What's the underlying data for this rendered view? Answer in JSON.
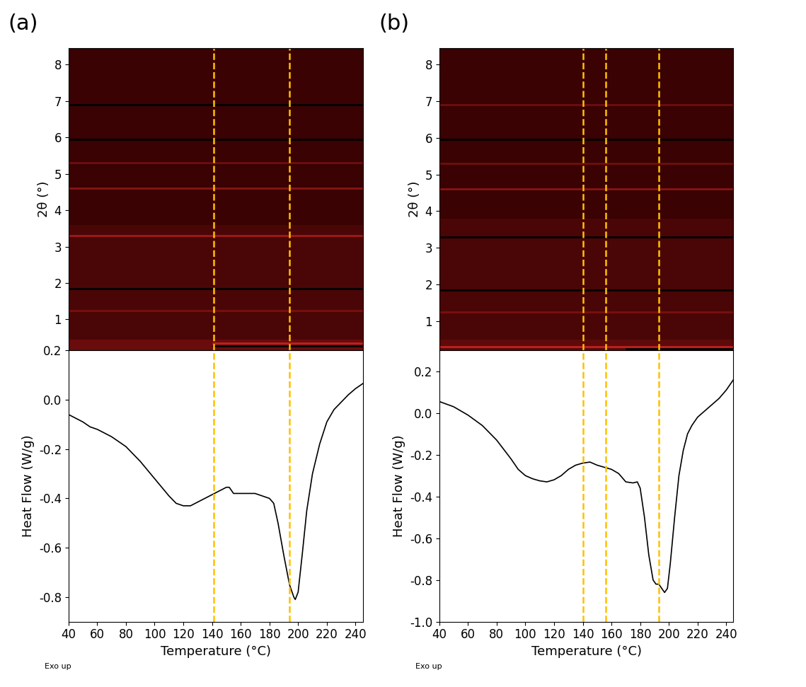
{
  "chart_data": [
    {
      "type": "heatmap",
      "panel_label": "(a)",
      "ylabel": "2θ (°)",
      "xlim": [
        40,
        245
      ],
      "ylim": [
        0.15,
        8.45
      ],
      "yticks": [
        1,
        2,
        3,
        4,
        5,
        6,
        7,
        8
      ],
      "tick_labels": "y",
      "color": "#3a0202",
      "bands": [
        {
          "y": [
            0.15,
            3.6
          ],
          "color": "#4a0606"
        },
        {
          "y": [
            0.15,
            0.45
          ],
          "color": "#6a0c0c"
        }
      ],
      "streaks": [
        {
          "y": 6.9,
          "x": [
            40,
            245
          ],
          "color": "#000000"
        },
        {
          "y": 5.95,
          "x": [
            40,
            245
          ],
          "color": "#000000"
        },
        {
          "y": 5.3,
          "x": [
            40,
            245
          ],
          "color": "#6e0f0f"
        },
        {
          "y": 4.6,
          "x": [
            40,
            245
          ],
          "color": "#8a1414"
        },
        {
          "y": 3.3,
          "x": [
            40,
            245
          ],
          "color": "#a01a1a"
        },
        {
          "y": 1.85,
          "x": [
            40,
            245
          ],
          "color": "#000000"
        },
        {
          "y": 1.25,
          "x": [
            40,
            245
          ],
          "color": "#7a1010"
        },
        {
          "y": 0.35,
          "x": [
            140,
            245
          ],
          "color": "#c02020"
        },
        {
          "y": 0.27,
          "x": [
            140,
            245
          ],
          "color": "#000000"
        }
      ],
      "vlines": {
        "x": [
          141,
          194
        ],
        "color": "#ffc000",
        "line_style": "dashed"
      }
    },
    {
      "type": "line",
      "xlabel": "Temperature (°C)",
      "ylabel": "Heat Flow (W/g)",
      "note": "Exo up",
      "xlim": [
        40,
        245
      ],
      "ylim": [
        -0.9,
        0.2
      ],
      "xticks": [
        40,
        60,
        80,
        100,
        120,
        140,
        160,
        180,
        200,
        220,
        240
      ],
      "yticks": [
        -0.8,
        -0.6,
        -0.4,
        -0.2,
        0.0,
        0.2
      ],
      "color": "#000000",
      "x": [
        40,
        50,
        55,
        60,
        70,
        80,
        90,
        100,
        110,
        115,
        120,
        125,
        130,
        140,
        145,
        150,
        152,
        155,
        160,
        165,
        170,
        175,
        180,
        183,
        186,
        190,
        194,
        197,
        198,
        200,
        203,
        206,
        210,
        215,
        220,
        225,
        230,
        235,
        240,
        245
      ],
      "values": [
        -0.06,
        -0.09,
        -0.11,
        -0.12,
        -0.15,
        -0.19,
        -0.25,
        -0.32,
        -0.39,
        -0.42,
        -0.43,
        -0.43,
        -0.415,
        -0.385,
        -0.37,
        -0.355,
        -0.355,
        -0.38,
        -0.38,
        -0.38,
        -0.38,
        -0.39,
        -0.4,
        -0.42,
        -0.5,
        -0.63,
        -0.75,
        -0.8,
        -0.81,
        -0.78,
        -0.62,
        -0.45,
        -0.3,
        -0.18,
        -0.09,
        -0.04,
        -0.01,
        0.02,
        0.045,
        0.065
      ],
      "vlines": {
        "x": [
          141,
          194
        ],
        "color": "#ffc000",
        "line_style": "dashed"
      }
    },
    {
      "type": "heatmap",
      "panel_label": "(b)",
      "ylabel": "2θ (°)",
      "xlim": [
        40,
        245
      ],
      "ylim": [
        0.2,
        8.45
      ],
      "yticks": [
        1,
        2,
        3,
        4,
        5,
        6,
        7,
        8
      ],
      "tick_labels": "y",
      "color": "#3a0202",
      "bands": [
        {
          "y": [
            0.2,
            3.8
          ],
          "color": "#4a0606"
        },
        {
          "y": [
            0.2,
            0.5
          ],
          "color": "#5e0a0a"
        }
      ],
      "streaks": [
        {
          "y": 6.9,
          "x": [
            40,
            245
          ],
          "color": "#6e0f0f"
        },
        {
          "y": 5.95,
          "x": [
            40,
            245
          ],
          "color": "#000000"
        },
        {
          "y": 5.3,
          "x": [
            40,
            245
          ],
          "color": "#6e0f0f"
        },
        {
          "y": 4.6,
          "x": [
            40,
            245
          ],
          "color": "#8a1414"
        },
        {
          "y": 3.3,
          "x": [
            40,
            245
          ],
          "color": "#000000"
        },
        {
          "y": 1.85,
          "x": [
            40,
            245
          ],
          "color": "#000000"
        },
        {
          "y": 1.25,
          "x": [
            40,
            245
          ],
          "color": "#7a1010"
        },
        {
          "y": 0.3,
          "x": [
            40,
            245
          ],
          "color": "#c02020"
        },
        {
          "y": 0.25,
          "x": [
            170,
            245
          ],
          "color": "#000000"
        }
      ],
      "vlines": {
        "x": [
          140,
          156,
          193
        ],
        "color": "#ffc000",
        "line_style": "dashed"
      }
    },
    {
      "type": "line",
      "xlabel": "Temperature (°C)",
      "ylabel": "Heat Flow (W/g)",
      "note": "Exo up",
      "xlim": [
        40,
        245
      ],
      "ylim": [
        -1.0,
        0.3
      ],
      "xticks": [
        40,
        60,
        80,
        100,
        120,
        140,
        160,
        180,
        200,
        220,
        240
      ],
      "yticks": [
        -1.0,
        -0.8,
        -0.6,
        -0.4,
        -0.2,
        0.0,
        0.2
      ],
      "color": "#000000",
      "x": [
        40,
        50,
        60,
        70,
        80,
        90,
        95,
        100,
        105,
        110,
        115,
        120,
        125,
        130,
        135,
        140,
        145,
        150,
        155,
        160,
        165,
        170,
        175,
        178,
        180,
        183,
        186,
        189,
        191,
        193,
        195,
        197,
        199,
        201,
        204,
        207,
        210,
        213,
        216,
        220,
        225,
        230,
        235,
        240,
        245
      ],
      "values": [
        0.055,
        0.03,
        -0.01,
        -0.06,
        -0.13,
        -0.22,
        -0.27,
        -0.3,
        -0.315,
        -0.325,
        -0.33,
        -0.32,
        -0.3,
        -0.27,
        -0.25,
        -0.24,
        -0.235,
        -0.25,
        -0.26,
        -0.27,
        -0.29,
        -0.33,
        -0.335,
        -0.33,
        -0.36,
        -0.5,
        -0.68,
        -0.8,
        -0.82,
        -0.82,
        -0.84,
        -0.86,
        -0.84,
        -0.72,
        -0.5,
        -0.3,
        -0.18,
        -0.1,
        -0.06,
        -0.02,
        0.01,
        0.04,
        0.07,
        0.11,
        0.16
      ],
      "vlines": {
        "x": [
          140,
          156,
          193
        ],
        "color": "#ffc000",
        "line_style": "dashed"
      }
    }
  ]
}
